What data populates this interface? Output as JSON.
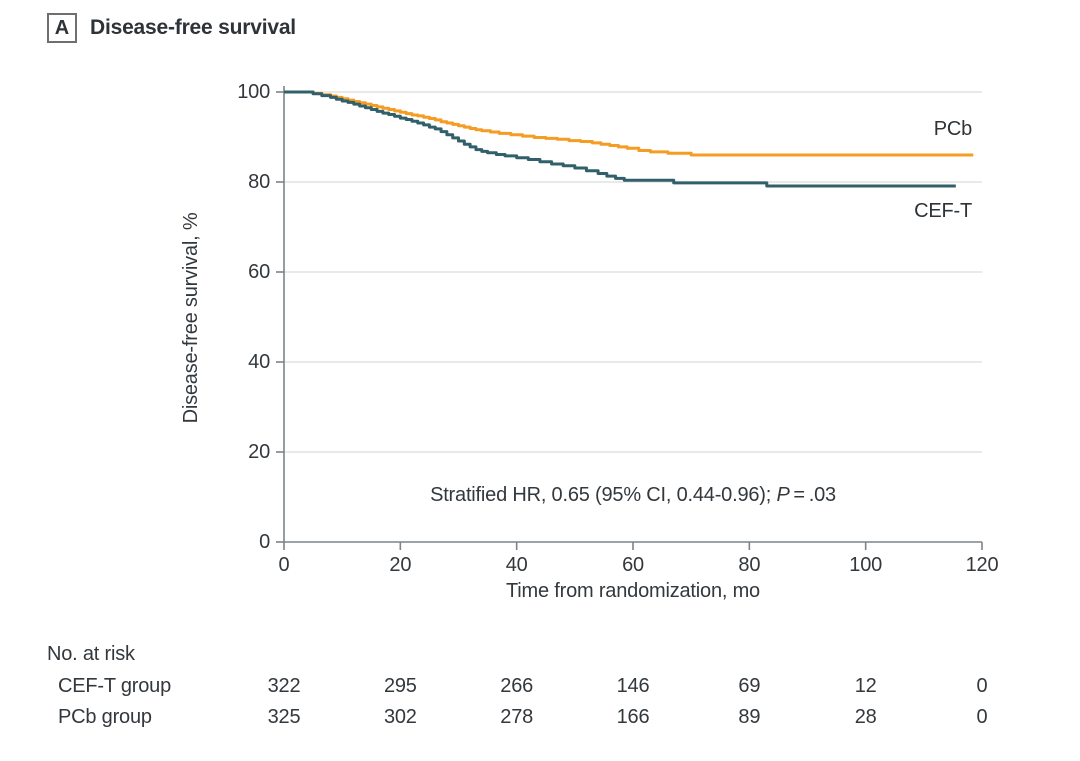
{
  "panel": {
    "letter": "A",
    "title": "Disease-free survival"
  },
  "colors": {
    "pcb_line": "#F59C24",
    "ceft_line": "#31606B",
    "axis": "#7d8489",
    "grid": "#e2e2e2",
    "text": "#33383d"
  },
  "chart_data": {
    "type": "line",
    "subtype": "kaplan-meier-step",
    "title": "Disease-free survival",
    "xlabel": "Time from randomization, mo",
    "ylabel": "Disease-free survival, %",
    "xlim": [
      0,
      120
    ],
    "ylim": [
      0,
      100
    ],
    "xticks": [
      0,
      20,
      40,
      60,
      80,
      100,
      120
    ],
    "yticks": [
      0,
      20,
      40,
      60,
      80,
      100
    ],
    "grid": "horizontal",
    "legend_position": "right-of-curves",
    "annotation": {
      "prefix": "Stratified HR, 0.65 (95% CI, 0.44-0.96); ",
      "p_symbol": "P",
      "suffix": " = .03"
    },
    "series": [
      {
        "name": "PCb",
        "color": "#F59C24",
        "points": [
          [
            0,
            100
          ],
          [
            3.5,
            100
          ],
          [
            5,
            99.7
          ],
          [
            6.5,
            99.4
          ],
          [
            8,
            99.1
          ],
          [
            9,
            98.8
          ],
          [
            10,
            98.5
          ],
          [
            11,
            98.2
          ],
          [
            12,
            97.9
          ],
          [
            13,
            97.6
          ],
          [
            14,
            97.3
          ],
          [
            15,
            97
          ],
          [
            16,
            96.7
          ],
          [
            17,
            96.4
          ],
          [
            18,
            96.1
          ],
          [
            19,
            95.8
          ],
          [
            20,
            95.5
          ],
          [
            21,
            95.2
          ],
          [
            22,
            94.9
          ],
          [
            23,
            94.7
          ],
          [
            24,
            94.4
          ],
          [
            25,
            94.1
          ],
          [
            26,
            93.8
          ],
          [
            27,
            93.4
          ],
          [
            28,
            93.1
          ],
          [
            29,
            92.8
          ],
          [
            30,
            92.5
          ],
          [
            31,
            92.2
          ],
          [
            32,
            91.9
          ],
          [
            33,
            91.6
          ],
          [
            34,
            91.4
          ],
          [
            35.5,
            91.1
          ],
          [
            37,
            90.8
          ],
          [
            39,
            90.5
          ],
          [
            41,
            90.2
          ],
          [
            43,
            89.9
          ],
          [
            45,
            89.7
          ],
          [
            47,
            89.5
          ],
          [
            49,
            89.2
          ],
          [
            51,
            89
          ],
          [
            53,
            88.7
          ],
          [
            54.5,
            88.4
          ],
          [
            56,
            88.1
          ],
          [
            57.5,
            87.8
          ],
          [
            59,
            87.5
          ],
          [
            61,
            87
          ],
          [
            63,
            86.7
          ],
          [
            66,
            86.4
          ],
          [
            70,
            86
          ],
          [
            118.5,
            86
          ]
        ]
      },
      {
        "name": "CEF-T",
        "color": "#31606B",
        "points": [
          [
            0,
            100
          ],
          [
            3.5,
            100
          ],
          [
            5,
            99.6
          ],
          [
            6.5,
            99.2
          ],
          [
            8,
            98.8
          ],
          [
            9,
            98.4
          ],
          [
            10,
            98
          ],
          [
            11,
            97.7
          ],
          [
            12,
            97.3
          ],
          [
            13,
            96.9
          ],
          [
            14,
            96.5
          ],
          [
            15,
            96.1
          ],
          [
            16,
            95.7
          ],
          [
            17,
            95.3
          ],
          [
            18,
            95
          ],
          [
            19,
            94.6
          ],
          [
            20,
            94.2
          ],
          [
            21,
            93.9
          ],
          [
            22,
            93.5
          ],
          [
            23,
            93.1
          ],
          [
            24,
            92.7
          ],
          [
            25,
            92.2
          ],
          [
            26,
            91.8
          ],
          [
            27,
            91.2
          ],
          [
            28,
            90.5
          ],
          [
            29,
            89.8
          ],
          [
            30,
            89.1
          ],
          [
            31,
            88.4
          ],
          [
            32,
            87.8
          ],
          [
            33,
            87.2
          ],
          [
            34,
            86.8
          ],
          [
            35,
            86.5
          ],
          [
            36.5,
            86.1
          ],
          [
            38,
            85.8
          ],
          [
            40,
            85.4
          ],
          [
            42,
            85
          ],
          [
            44,
            84.5
          ],
          [
            46,
            84
          ],
          [
            48,
            83.6
          ],
          [
            50,
            83.1
          ],
          [
            52,
            82.5
          ],
          [
            54,
            81.9
          ],
          [
            55.5,
            81.3
          ],
          [
            57,
            80.8
          ],
          [
            58.5,
            80.4
          ],
          [
            67,
            79.8
          ],
          [
            83,
            79.1
          ],
          [
            115.5,
            79.1
          ]
        ]
      }
    ],
    "risk_table": {
      "title": "No. at risk",
      "times": [
        0,
        20,
        40,
        60,
        80,
        100,
        120
      ],
      "rows": [
        {
          "label": "CEF-T group",
          "values": [
            322,
            295,
            266,
            146,
            69,
            12,
            0
          ]
        },
        {
          "label": "PCb group",
          "values": [
            325,
            302,
            278,
            166,
            89,
            28,
            0
          ]
        }
      ]
    }
  }
}
